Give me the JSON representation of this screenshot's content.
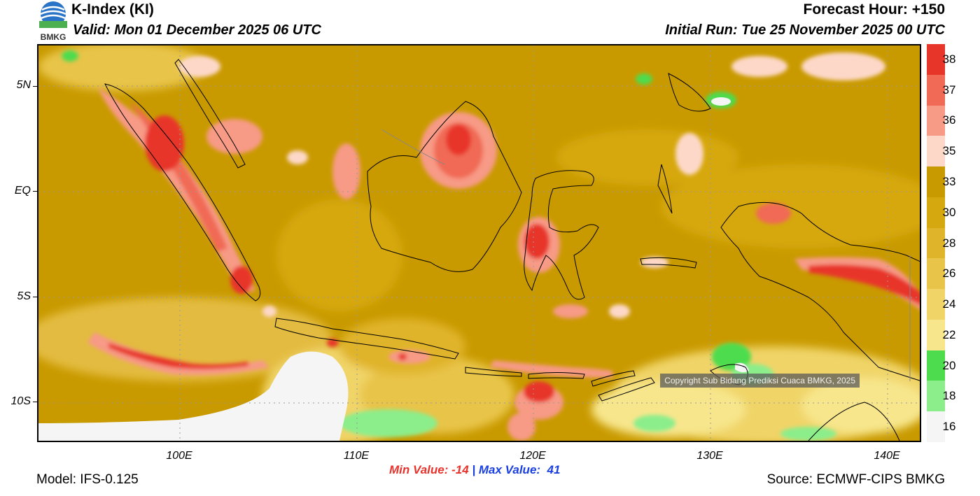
{
  "header": {
    "title": "K-Index (KI)",
    "valid": "Valid: Mon 01 December 2025 06 UTC",
    "forecast_hour": "Forecast Hour: +150",
    "initial_run": "Initial Run: Tue 25 November 2025 00 UTC",
    "logo_text": "BMKG"
  },
  "axes": {
    "lat_labels": [
      "5N",
      "EQ",
      "5S",
      "10S"
    ],
    "lon_labels": [
      "100E",
      "110E",
      "120E",
      "130E",
      "140E"
    ]
  },
  "colorbar": {
    "labels": [
      "38",
      "37",
      "36",
      "35",
      "33",
      "30",
      "28",
      "26",
      "24",
      "22",
      "20",
      "18",
      "16"
    ],
    "colors": [
      "#e8352a",
      "#f06a55",
      "#f79a86",
      "#fdd8c8",
      "#c99a00",
      "#d6a810",
      "#e0b42a",
      "#e8c448",
      "#f0d468",
      "#f7e68c",
      "#4ddc4d",
      "#8bee8b",
      "#f5f5f5"
    ]
  },
  "map": {
    "copyright": "Copyright Sub Bidang Prediksi Cuaca BMKG, 2025"
  },
  "footer": {
    "min_value": "Min Value: -14",
    "max_value": "Max Value:  41",
    "separator": " | ",
    "model": "Model: IFS-0.125",
    "source": "Source: ECMWF-CIPS BMKG"
  }
}
